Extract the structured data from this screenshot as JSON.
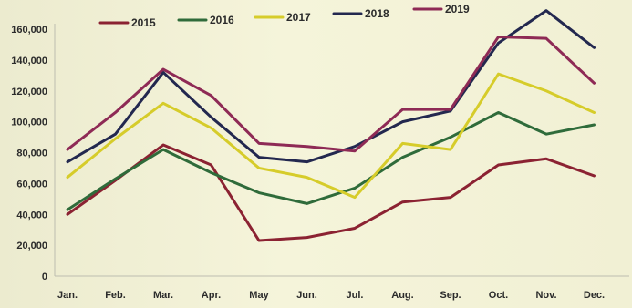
{
  "chart_data": {
    "type": "line",
    "categories": [
      "Jan.",
      "Feb.",
      "Mar.",
      "Apr.",
      "May",
      "Jun.",
      "Jul.",
      "Aug.",
      "Sep.",
      "Oct.",
      "Nov.",
      "Dec."
    ],
    "ylim": [
      0,
      160000
    ],
    "yticks": [
      "0",
      "20,000",
      "40,000",
      "60,000",
      "80,000",
      "100,000",
      "120,000",
      "140,000",
      "160,000"
    ],
    "ytick_values": [
      0,
      20000,
      40000,
      60000,
      80000,
      100000,
      120000,
      140000,
      160000
    ],
    "grid": false,
    "legend_position": "top",
    "series": [
      {
        "name": "2015",
        "color": "#8b2232",
        "values": [
          40000,
          62000,
          85000,
          72000,
          23000,
          25000,
          31000,
          48000,
          51000,
          72000,
          76000,
          65000
        ]
      },
      {
        "name": "2016",
        "color": "#2f6b3a",
        "values": [
          43000,
          63000,
          82000,
          67000,
          54000,
          47000,
          57000,
          77000,
          90000,
          106000,
          92000,
          98000
        ]
      },
      {
        "name": "2017",
        "color": "#d6cc2a",
        "values": [
          64000,
          89000,
          112000,
          96000,
          70000,
          64000,
          51000,
          86000,
          82000,
          131000,
          120000,
          106000
        ]
      },
      {
        "name": "2018",
        "color": "#23284f",
        "values": [
          74000,
          92000,
          132000,
          103000,
          77000,
          74000,
          84000,
          100000,
          107000,
          151000,
          172000,
          148000
        ]
      },
      {
        "name": "2019",
        "color": "#8e2a55",
        "values": [
          82000,
          106000,
          134000,
          117000,
          86000,
          84000,
          81000,
          108000,
          108000,
          155000,
          154000,
          125000
        ]
      }
    ]
  }
}
